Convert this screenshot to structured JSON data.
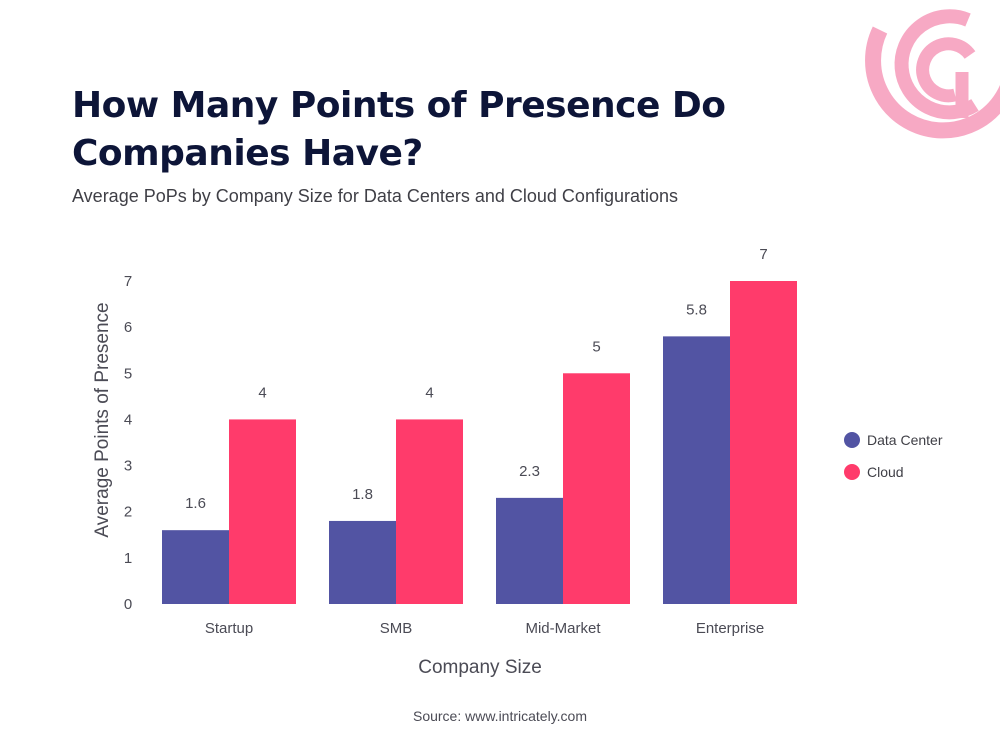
{
  "header": {
    "title": "How Many Points of Presence Do Companies Have?",
    "subtitle": "Average PoPs by Company Size for Data Centers and Cloud Configurations"
  },
  "source": "Source: www.intricately.com",
  "colors": {
    "data_center": "#5254a3",
    "cloud": "#ff3b6b",
    "logo": "#f7a9c4"
  },
  "logo_icon": "concentric-circle-logo-icon",
  "chart_data": {
    "type": "bar",
    "categories": [
      "Startup",
      "SMB",
      "Mid-Market",
      "Enterprise"
    ],
    "series": [
      {
        "name": "Data Center",
        "values": [
          1.6,
          1.8,
          2.3,
          5.8
        ],
        "labels": [
          "1.6",
          "1.8",
          "2.3",
          "5.8"
        ]
      },
      {
        "name": "Cloud",
        "values": [
          4,
          4,
          5,
          7
        ],
        "labels": [
          "4",
          "4",
          "5",
          "7"
        ]
      }
    ],
    "xlabel": "Company Size",
    "ylabel": "Average Points of Presence",
    "ylim": [
      0,
      7
    ],
    "yticks": [
      0,
      1,
      2,
      3,
      4,
      5,
      6,
      7
    ],
    "grid": false,
    "legend_position": "right"
  }
}
